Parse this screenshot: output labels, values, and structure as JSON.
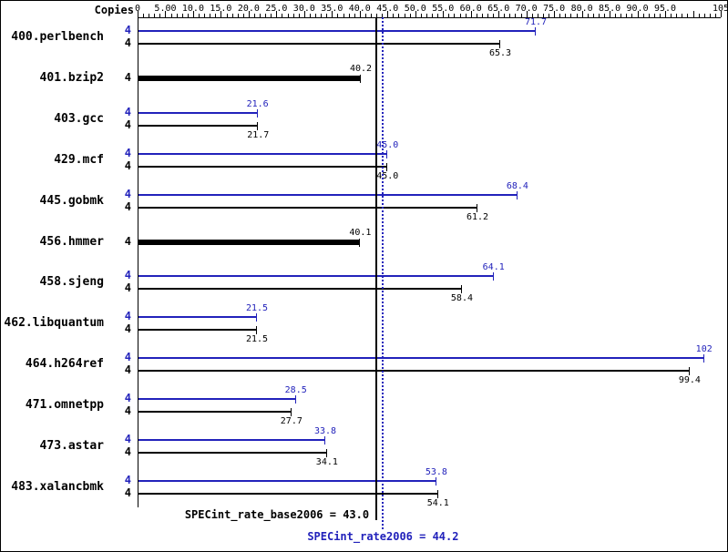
{
  "page": {
    "copies_header": "Copies"
  },
  "colors": {
    "peak_blue": "#2222bb",
    "base_black": "#000000",
    "background": "#ffffff"
  },
  "chart_data": {
    "type": "bar",
    "orientation": "horizontal",
    "x_axis": {
      "min": 0,
      "max": 105,
      "major_tick_step": 5,
      "minor_tick_step": 1,
      "tick_labels": [
        {
          "value": 0,
          "label": "0"
        },
        {
          "value": 5,
          "label": "5.00"
        },
        {
          "value": 10,
          "label": "10.0"
        },
        {
          "value": 15,
          "label": "15.0"
        },
        {
          "value": 20,
          "label": "20.0"
        },
        {
          "value": 25,
          "label": "25.0"
        },
        {
          "value": 30,
          "label": "30.0"
        },
        {
          "value": 35,
          "label": "35.0"
        },
        {
          "value": 40,
          "label": "40.0"
        },
        {
          "value": 45,
          "label": "45.0"
        },
        {
          "value": 50,
          "label": "50.0"
        },
        {
          "value": 55,
          "label": "55.0"
        },
        {
          "value": 60,
          "label": "60.0"
        },
        {
          "value": 65,
          "label": "65.0"
        },
        {
          "value": 70,
          "label": "70.0"
        },
        {
          "value": 75,
          "label": "75.0"
        },
        {
          "value": 80,
          "label": "80.0"
        },
        {
          "value": 85,
          "label": "85.0"
        },
        {
          "value": 90,
          "label": "90.0"
        },
        {
          "value": 95,
          "label": "95.0"
        },
        {
          "value": 105,
          "label": "105"
        }
      ]
    },
    "benchmarks": [
      {
        "name": "400.perlbench",
        "copies": "4",
        "single": false,
        "peak": 71.7,
        "peak_label": "71.7",
        "base": 65.3,
        "base_label": "65.3"
      },
      {
        "name": "401.bzip2",
        "copies": "4",
        "single": true,
        "base": 40.2,
        "base_label": "40.2"
      },
      {
        "name": "403.gcc",
        "copies": "4",
        "single": false,
        "peak": 21.6,
        "peak_label": "21.6",
        "base": 21.7,
        "base_label": "21.7"
      },
      {
        "name": "429.mcf",
        "copies": "4",
        "single": false,
        "peak": 45.0,
        "peak_label": "45.0",
        "base": 45.0,
        "base_label": "45.0"
      },
      {
        "name": "445.gobmk",
        "copies": "4",
        "single": false,
        "peak": 68.4,
        "peak_label": "68.4",
        "base": 61.2,
        "base_label": "61.2"
      },
      {
        "name": "456.hmmer",
        "copies": "4",
        "single": true,
        "base": 40.1,
        "base_label": "40.1"
      },
      {
        "name": "458.sjeng",
        "copies": "4",
        "single": false,
        "peak": 64.1,
        "peak_label": "64.1",
        "base": 58.4,
        "base_label": "58.4"
      },
      {
        "name": "462.libquantum",
        "copies": "4",
        "single": false,
        "peak": 21.5,
        "peak_label": "21.5",
        "base": 21.5,
        "base_label": "21.5"
      },
      {
        "name": "464.h264ref",
        "copies": "4",
        "single": false,
        "peak": 102,
        "peak_label": "102",
        "base": 99.4,
        "base_label": "99.4"
      },
      {
        "name": "471.omnetpp",
        "copies": "4",
        "single": false,
        "peak": 28.5,
        "peak_label": "28.5",
        "base": 27.7,
        "base_label": "27.7"
      },
      {
        "name": "473.astar",
        "copies": "4",
        "single": false,
        "peak": 33.8,
        "peak_label": "33.8",
        "base": 34.1,
        "base_label": "34.1"
      },
      {
        "name": "483.xalancbmk",
        "copies": "4",
        "single": false,
        "peak": 53.8,
        "peak_label": "53.8",
        "base": 54.1,
        "base_label": "54.1"
      }
    ],
    "reference_lines": [
      {
        "name": "base_mean",
        "value": 43.0,
        "style": "solid",
        "color": "#000000",
        "label": "SPECint_rate_base2006 = 43.0"
      },
      {
        "name": "peak_mean",
        "value": 44.2,
        "style": "dotted",
        "color": "#2222bb",
        "label": "SPECint_rate2006 = 44.2"
      }
    ]
  }
}
